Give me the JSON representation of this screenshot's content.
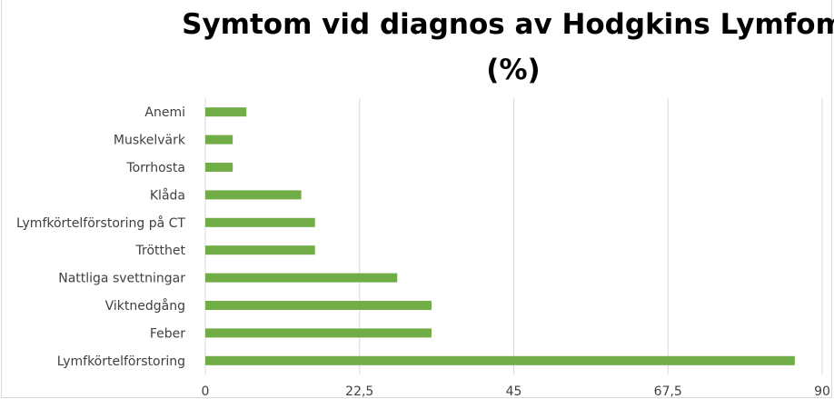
{
  "chart_data": {
    "type": "bar",
    "orientation": "horizontal",
    "title": "Symtom vid diagnos av Hodgkins Lymfom (%)",
    "title_lines": [
      "Symtom vid diagnos av Hodgkins Lymfom",
      "(%)"
    ],
    "categories": [
      "Anemi",
      "Muskelvärk",
      "Torrhosta",
      "Klåda",
      "Lymfkörtelförstoring på CT",
      "Trötthet",
      "Nattliga svettningar",
      "Viktnedgång",
      "Feber",
      "Lymfkörtelförstoring"
    ],
    "values": [
      6,
      4,
      4,
      14,
      16,
      16,
      28,
      33,
      33,
      86
    ],
    "xlim": [
      0,
      90
    ],
    "xticks": [
      "0",
      "22,5",
      "45",
      "67,5",
      "90"
    ],
    "xtick_values": [
      0,
      22.5,
      45,
      67.5,
      90
    ],
    "xlabel": "",
    "ylabel": "",
    "grid": "vertical",
    "legend": "none",
    "bar_color": "#70ad47",
    "grid_color": "#d9d9d9"
  }
}
